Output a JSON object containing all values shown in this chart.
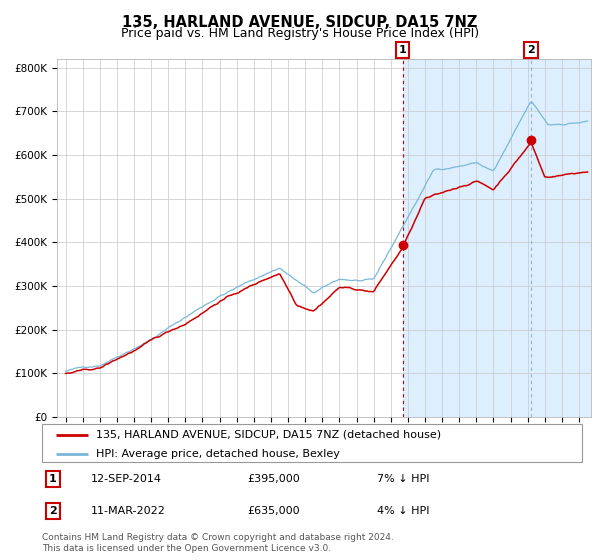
{
  "title": "135, HARLAND AVENUE, SIDCUP, DA15 7NZ",
  "subtitle": "Price paid vs. HM Land Registry's House Price Index (HPI)",
  "ylim": [
    0,
    820000
  ],
  "yticks": [
    0,
    100000,
    200000,
    300000,
    400000,
    500000,
    600000,
    700000,
    800000
  ],
  "ytick_labels": [
    "£0",
    "£100K",
    "£200K",
    "£300K",
    "£400K",
    "£500K",
    "£600K",
    "£700K",
    "£800K"
  ],
  "hpi_color": "#7ab8d9",
  "price_color": "#cc0000",
  "marker_color": "#cc0000",
  "vline1_color": "#cc0000",
  "vline2_color": "#8ab4d4",
  "shade_color": "#ddeeff",
  "annotation_box_color": "#cc0000",
  "grid_color": "#c8c8c8",
  "background_color": "#ffffff",
  "legend_label_price": "135, HARLAND AVENUE, SIDCUP, DA15 7NZ (detached house)",
  "legend_label_hpi": "HPI: Average price, detached house, Bexley",
  "sale1_date": "12-SEP-2014",
  "sale1_price": "£395,000",
  "sale1_pct": "7% ↓ HPI",
  "sale1_year": 2014.7,
  "sale1_value": 395000,
  "sale2_date": "11-MAR-2022",
  "sale2_price": "£635,000",
  "sale2_pct": "4% ↓ HPI",
  "sale2_year": 2022.2,
  "sale2_value": 635000,
  "footnote1": "Contains HM Land Registry data © Crown copyright and database right 2024.",
  "footnote2": "This data is licensed under the Open Government Licence v3.0.",
  "title_fontsize": 10.5,
  "subtitle_fontsize": 9,
  "tick_fontsize": 7.5,
  "legend_fontsize": 8,
  "footnote_fontsize": 6.5
}
